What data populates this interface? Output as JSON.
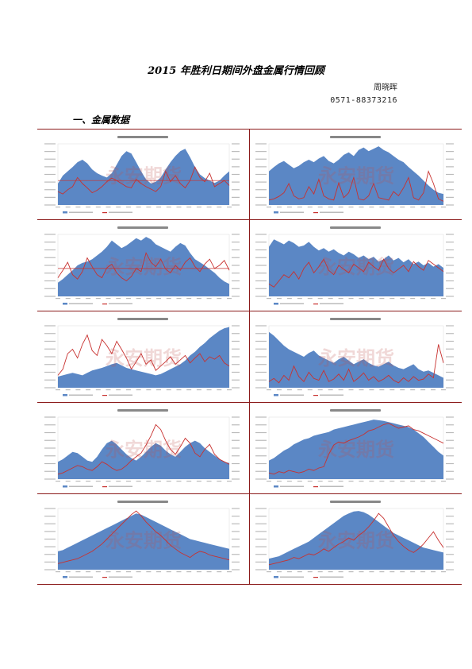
{
  "document": {
    "title": "2015 年胜利日期间外盘金属行情回顾",
    "author": "周晓晖",
    "phone": "0571-88373216",
    "section_heading": "一、金属数据"
  },
  "colors": {
    "area": "#5b87c5",
    "line": "#c8312f",
    "rule": "#8b1a1a",
    "watermark": "#c0504d"
  },
  "watermark": "永安期货",
  "charts": [
    {
      "shape": [
        35,
        48,
        55,
        62,
        70,
        74,
        68,
        58,
        52,
        48,
        45,
        52,
        66,
        80,
        88,
        84,
        70,
        55,
        42,
        35,
        38,
        45,
        58,
        70,
        80,
        88,
        92,
        78,
        62,
        50,
        44,
        40,
        36,
        40,
        48,
        55
      ],
      "line": [
        22,
        18,
        25,
        30,
        45,
        35,
        28,
        20,
        24,
        30,
        38,
        44,
        40,
        35,
        30,
        28,
        42,
        35,
        30,
        26,
        22,
        30,
        55,
        38,
        48,
        35,
        28,
        40,
        62,
        45,
        38,
        52,
        30,
        35,
        40,
        32
      ],
      "ref": 40
    },
    {
      "shape": [
        55,
        62,
        68,
        72,
        66,
        60,
        64,
        70,
        74,
        70,
        76,
        80,
        72,
        68,
        74,
        82,
        86,
        80,
        90,
        94,
        88,
        92,
        96,
        90,
        86,
        80,
        74,
        70,
        62,
        55,
        48,
        40,
        32,
        25,
        20,
        18
      ],
      "line": [
        8,
        10,
        14,
        20,
        35,
        15,
        10,
        12,
        30,
        18,
        42,
        15,
        10,
        8,
        36,
        12,
        20,
        45,
        10,
        8,
        15,
        35,
        12,
        10,
        8,
        22,
        15,
        28,
        45,
        12,
        8,
        20,
        55,
        35,
        10,
        6
      ]
    },
    {
      "shape": [
        22,
        28,
        35,
        42,
        50,
        54,
        56,
        60,
        66,
        72,
        80,
        90,
        84,
        78,
        82,
        88,
        94,
        90,
        96,
        92,
        84,
        80,
        76,
        72,
        80,
        86,
        82,
        70,
        60,
        55,
        50,
        44,
        38,
        30,
        24,
        20
      ],
      "line": [
        30,
        42,
        55,
        35,
        28,
        40,
        62,
        48,
        35,
        30,
        46,
        52,
        38,
        30,
        25,
        32,
        45,
        40,
        70,
        55,
        48,
        60,
        44,
        38,
        50,
        42,
        55,
        62,
        48,
        40,
        52,
        60,
        45,
        50,
        58,
        42
      ],
      "ref": 45
    },
    {
      "shape": [
        80,
        92,
        88,
        84,
        90,
        86,
        80,
        82,
        88,
        80,
        74,
        78,
        72,
        76,
        70,
        66,
        72,
        68,
        62,
        66,
        60,
        64,
        56,
        60,
        66,
        58,
        62,
        55,
        60,
        52,
        56,
        50,
        54,
        48,
        52,
        46
      ],
      "line": [
        20,
        15,
        25,
        35,
        30,
        40,
        28,
        45,
        55,
        38,
        48,
        60,
        42,
        35,
        50,
        44,
        38,
        52,
        46,
        40,
        55,
        48,
        42,
        60,
        45,
        38,
        44,
        50,
        40,
        56,
        48,
        42,
        58,
        52,
        46,
        40
      ]
    },
    {
      "shape": [
        18,
        20,
        22,
        24,
        22,
        20,
        24,
        28,
        30,
        32,
        35,
        38,
        40,
        36,
        32,
        30,
        28,
        26,
        24,
        22,
        20,
        22,
        26,
        30,
        34,
        38,
        44,
        52,
        58,
        66,
        72,
        80,
        86,
        92,
        96,
        98
      ],
      "line": [
        20,
        30,
        55,
        62,
        48,
        70,
        85,
        60,
        52,
        78,
        68,
        55,
        75,
        62,
        48,
        30,
        42,
        55,
        38,
        45,
        28,
        35,
        42,
        50,
        38,
        45,
        52,
        40,
        48,
        55,
        42,
        50,
        46,
        52,
        40,
        35
      ]
    },
    {
      "shape": [
        90,
        84,
        76,
        68,
        62,
        58,
        54,
        50,
        56,
        60,
        52,
        48,
        44,
        40,
        46,
        50,
        44,
        38,
        42,
        46,
        40,
        36,
        34,
        38,
        42,
        36,
        32,
        30,
        34,
        38,
        30,
        26,
        28,
        24,
        20,
        16
      ],
      "line": [
        10,
        15,
        8,
        20,
        12,
        35,
        18,
        10,
        25,
        15,
        12,
        28,
        10,
        14,
        22,
        12,
        30,
        10,
        16,
        24,
        12,
        18,
        10,
        14,
        20,
        12,
        8,
        16,
        10,
        18,
        12,
        14,
        22,
        16,
        70,
        40
      ]
    },
    {
      "shape": [
        28,
        32,
        38,
        44,
        42,
        36,
        30,
        28,
        36,
        48,
        58,
        62,
        56,
        48,
        40,
        34,
        30,
        36,
        44,
        52,
        58,
        54,
        46,
        40,
        36,
        44,
        52,
        58,
        62,
        58,
        50,
        44,
        38,
        32,
        28,
        26
      ],
      "line": [
        8,
        10,
        14,
        18,
        22,
        20,
        16,
        14,
        20,
        28,
        24,
        18,
        14,
        16,
        22,
        30,
        36,
        42,
        55,
        70,
        88,
        80,
        62,
        48,
        40,
        52,
        66,
        58,
        42,
        36,
        48,
        56,
        40,
        32,
        28,
        24
      ]
    },
    {
      "shape": [
        30,
        34,
        40,
        46,
        50,
        56,
        60,
        64,
        66,
        70,
        72,
        74,
        76,
        80,
        82,
        84,
        86,
        88,
        90,
        92,
        94,
        96,
        95,
        94,
        92,
        90,
        88,
        86,
        84,
        80,
        74,
        68,
        60,
        52,
        44,
        38
      ],
      "line": [
        10,
        8,
        12,
        10,
        14,
        12,
        10,
        12,
        16,
        14,
        18,
        20,
        40,
        55,
        60,
        58,
        62,
        65,
        68,
        72,
        78,
        80,
        84,
        88,
        90,
        86,
        82,
        84,
        86,
        80,
        78,
        74,
        70,
        66,
        62,
        58
      ]
    },
    {
      "shape": [
        30,
        32,
        36,
        40,
        44,
        48,
        52,
        56,
        60,
        64,
        68,
        72,
        76,
        80,
        84,
        88,
        92,
        90,
        86,
        82,
        78,
        74,
        70,
        66,
        62,
        58,
        54,
        50,
        48,
        46,
        44,
        42,
        40,
        38,
        36,
        34
      ],
      "line": [
        10,
        12,
        14,
        16,
        18,
        22,
        26,
        30,
        36,
        42,
        50,
        58,
        66,
        74,
        82,
        90,
        96,
        88,
        78,
        70,
        62,
        56,
        48,
        40,
        34,
        28,
        24,
        20,
        26,
        30,
        28,
        24,
        22,
        20,
        18,
        16
      ]
    },
    {
      "shape": [
        18,
        20,
        22,
        26,
        30,
        34,
        38,
        42,
        46,
        52,
        58,
        64,
        70,
        76,
        82,
        88,
        92,
        95,
        96,
        94,
        90,
        84,
        78,
        72,
        66,
        60,
        56,
        52,
        48,
        44,
        40,
        36,
        34,
        32,
        30,
        28
      ],
      "line": [
        8,
        10,
        12,
        14,
        16,
        20,
        18,
        22,
        26,
        24,
        28,
        34,
        30,
        36,
        42,
        46,
        52,
        48,
        56,
        62,
        70,
        80,
        92,
        84,
        70,
        56,
        46,
        38,
        32,
        28,
        34,
        42,
        52,
        62,
        48,
        36
      ]
    }
  ]
}
